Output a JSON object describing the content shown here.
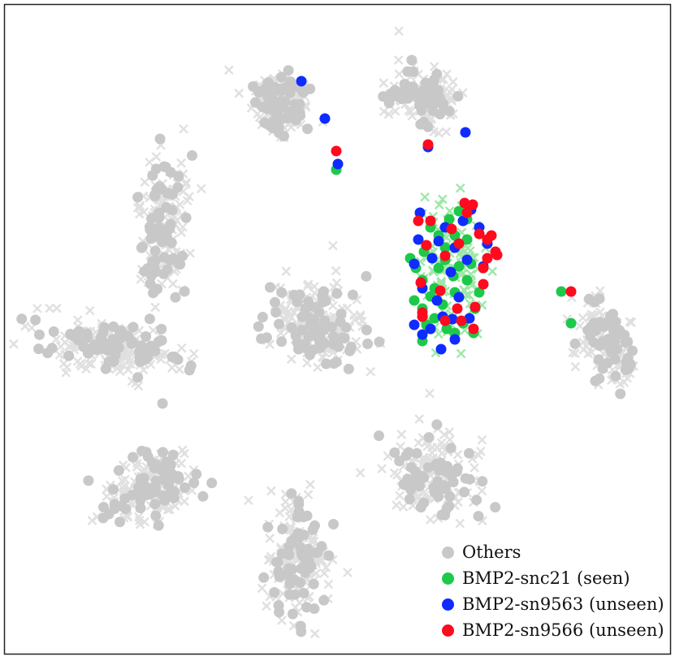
{
  "chart_data": {
    "type": "scatter",
    "title": "",
    "xlabel": "",
    "ylabel": "",
    "grid": false,
    "axes_visible": false,
    "legend_position": "bottom-right",
    "series": [
      {
        "name": "Others",
        "color": "#c8c8c8",
        "cross_color": "#e0e0e0",
        "clusters": [
          {
            "center": [
              347,
              128
            ],
            "spread": [
              38,
              42
            ],
            "angle": 40,
            "n": 110
          },
          {
            "center": [
              522,
              118
            ],
            "spread": [
              40,
              38
            ],
            "angle": 0,
            "n": 90
          },
          {
            "center": [
              202,
              275
            ],
            "spread": [
              30,
              82
            ],
            "angle": 5,
            "n": 120
          },
          {
            "center": [
              390,
              398
            ],
            "spread": [
              55,
              50
            ],
            "angle": 20,
            "n": 130
          },
          {
            "center": [
              135,
              428
            ],
            "spread": [
              92,
              33
            ],
            "angle": 10,
            "n": 130
          },
          {
            "center": [
              748,
              420
            ],
            "spread": [
              32,
              62
            ],
            "angle": -30,
            "n": 90
          },
          {
            "center": [
              190,
              600
            ],
            "spread": [
              65,
              40
            ],
            "angle": -30,
            "n": 120
          },
          {
            "center": [
              367,
              690
            ],
            "spread": [
              38,
              70
            ],
            "angle": 0,
            "n": 120
          },
          {
            "center": [
              536,
              585
            ],
            "spread": [
              50,
              60
            ],
            "angle": -35,
            "n": 120
          }
        ]
      },
      {
        "name": "BMP2-snc21 (seen)",
        "color": "#1ec94a",
        "points": [
          [
            414,
            209
          ],
          [
            691,
            359
          ],
          [
            703,
            398
          ],
          [
            553,
            270
          ],
          [
            560,
            290
          ],
          [
            522,
            310
          ],
          [
            505,
            318
          ],
          [
            540,
            330
          ],
          [
            575,
            345
          ],
          [
            520,
            345
          ],
          [
            535,
            355
          ],
          [
            560,
            360
          ],
          [
            575,
            295
          ],
          [
            585,
            380
          ],
          [
            520,
            380
          ],
          [
            535,
            392
          ],
          [
            550,
            405
          ],
          [
            560,
            410
          ],
          [
            512,
            330
          ],
          [
            545,
            375
          ],
          [
            580,
            325
          ],
          [
            565,
            260
          ],
          [
            530,
            365
          ],
          [
            548,
            320
          ],
          [
            570,
            398
          ],
          [
            590,
            360
          ],
          [
            525,
            400
          ],
          [
            558,
            340
          ],
          [
            540,
            290
          ],
          [
            575,
            270
          ],
          [
            510,
            370
          ],
          [
            583,
            410
          ],
          [
            520,
            420
          ],
          [
            565,
            328
          ],
          [
            530,
            280
          ],
          [
            548,
            305
          ]
        ]
      },
      {
        "name": "BMP2-sn9563 (unseen)",
        "color": "#0f2bff",
        "points": [
          [
            371,
            100
          ],
          [
            400,
            146
          ],
          [
            416,
            202
          ],
          [
            573,
            163
          ],
          [
            527,
            181
          ],
          [
            517,
            262
          ],
          [
            540,
            297
          ],
          [
            510,
            325
          ],
          [
            555,
            335
          ],
          [
            595,
            328
          ],
          [
            520,
            355
          ],
          [
            565,
            366
          ],
          [
            545,
            390
          ],
          [
            530,
            405
          ],
          [
            570,
            272
          ],
          [
            580,
            258
          ],
          [
            600,
            300
          ],
          [
            515,
            295
          ],
          [
            548,
            280
          ],
          [
            520,
            412
          ],
          [
            543,
            430
          ],
          [
            557,
            393
          ],
          [
            578,
            392
          ],
          [
            590,
            280
          ],
          [
            532,
            318
          ],
          [
            560,
            305
          ],
          [
            575,
            320
          ],
          [
            510,
            400
          ],
          [
            538,
            370
          ],
          [
            560,
            418
          ]
        ]
      },
      {
        "name": "BMP2-sn9566 (unseen)",
        "color": "#ff0a1e",
        "points": [
          [
            414,
            186
          ],
          [
            703,
            359
          ],
          [
            527,
            178
          ],
          [
            515,
            272
          ],
          [
            525,
            302
          ],
          [
            548,
            315
          ],
          [
            572,
            250
          ],
          [
            582,
            252
          ],
          [
            590,
            288
          ],
          [
            600,
            295
          ],
          [
            610,
            310
          ],
          [
            600,
            318
          ],
          [
            595,
            350
          ],
          [
            563,
            380
          ],
          [
            585,
            378
          ],
          [
            520,
            390
          ],
          [
            548,
            395
          ],
          [
            583,
            405
          ],
          [
            556,
            282
          ],
          [
            542,
            358
          ],
          [
            565,
            300
          ],
          [
            612,
            314
          ],
          [
            575,
            262
          ],
          [
            530,
            272
          ],
          [
            518,
            348
          ],
          [
            568,
            395
          ],
          [
            595,
            330
          ],
          [
            605,
            290
          ],
          [
            520,
            385
          ]
        ]
      }
    ]
  }
}
